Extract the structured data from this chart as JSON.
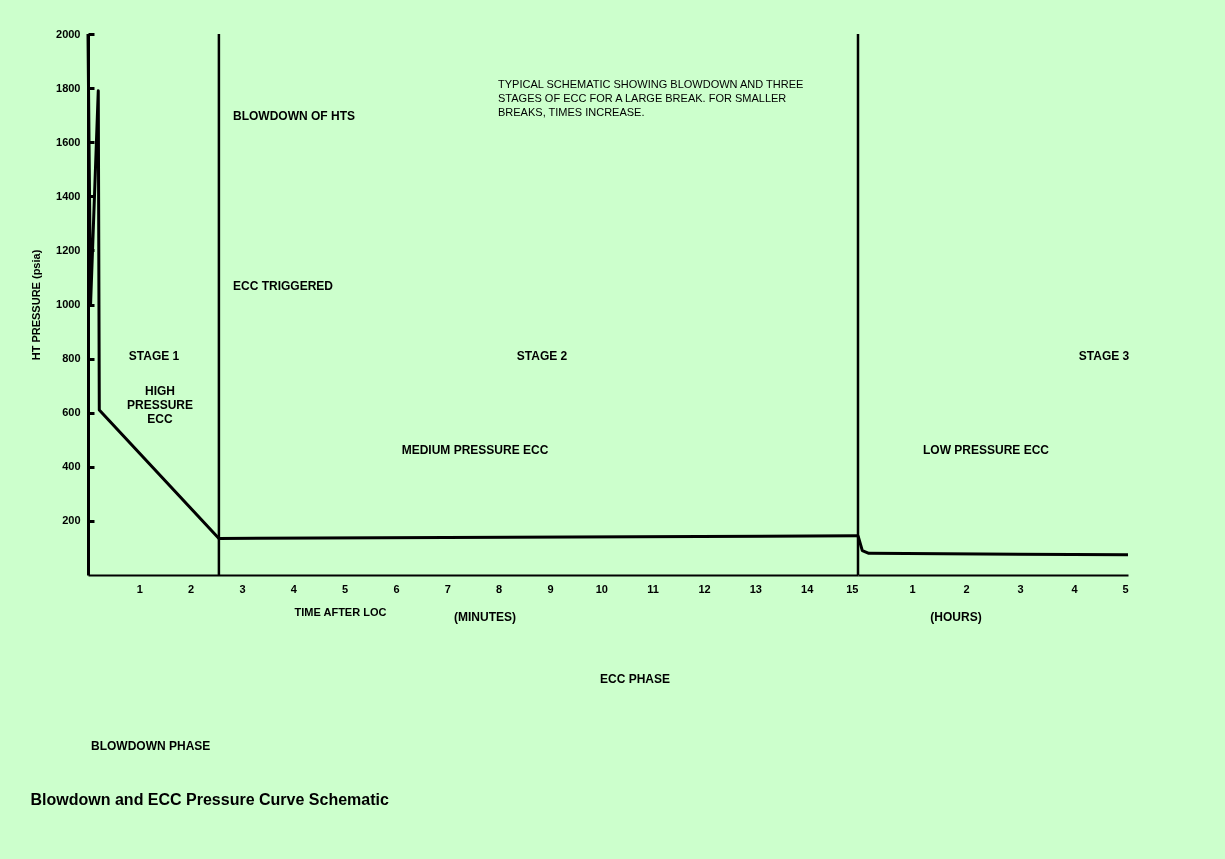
{
  "chart_data": [
    {
      "type": "line",
      "title": "Blowdown and ECC Pressure Curve Schematic",
      "xlabel": "TIME AFTER LOC",
      "ylabel": "HT PRESSURE (psia)",
      "x": [
        0,
        0.05,
        0.2,
        0.22,
        2.55,
        15
      ],
      "values": [
        2000,
        1000,
        1790,
        610,
        135,
        145
      ],
      "color": "#000000",
      "xlim": [
        0,
        15
      ],
      "ylim": [
        0,
        2000
      ],
      "xticks": [
        1,
        2,
        3,
        4,
        5,
        6,
        7,
        8,
        9,
        10,
        11,
        12,
        13,
        14,
        15
      ],
      "yticks": [
        200,
        400,
        600,
        800,
        1000,
        1200,
        1400,
        1600,
        1800,
        2000
      ],
      "grid": false,
      "ref_lines": [
        {
          "axis": "x",
          "value": 2.55
        },
        {
          "axis": "x",
          "value": 15
        }
      ],
      "annotations": [
        "TYPICAL SCHEMATIC SHOWING BLOWDOWN AND THREE STAGES OF ECC FOR A LARGE BREAK.  FOR SMALLER BREAKS, TIMES INCREASE.",
        "BLOWDOWN OF HTS",
        "ECC TRIGGERED",
        "STAGE 1",
        "HIGH PRESSURE ECC",
        "STAGE 2",
        "MEDIUM PRESSURE ECC",
        "(MINUTES)",
        "BLOWDOWN PHASE",
        "ECC PHASE"
      ]
    },
    {
      "type": "line",
      "x": [
        0,
        0.08,
        0.2,
        5
      ],
      "values": [
        145,
        90,
        80,
        75
      ],
      "color": "#000000",
      "xlim": [
        0,
        5
      ],
      "ylim": [
        0,
        2000
      ],
      "xticks": [
        1,
        2,
        3,
        4,
        5
      ],
      "grid": false,
      "tick_labels": "x",
      "annotations": [
        "STAGE 3",
        "LOW PRESSURE ECC",
        "(HOURS)"
      ]
    }
  ]
}
